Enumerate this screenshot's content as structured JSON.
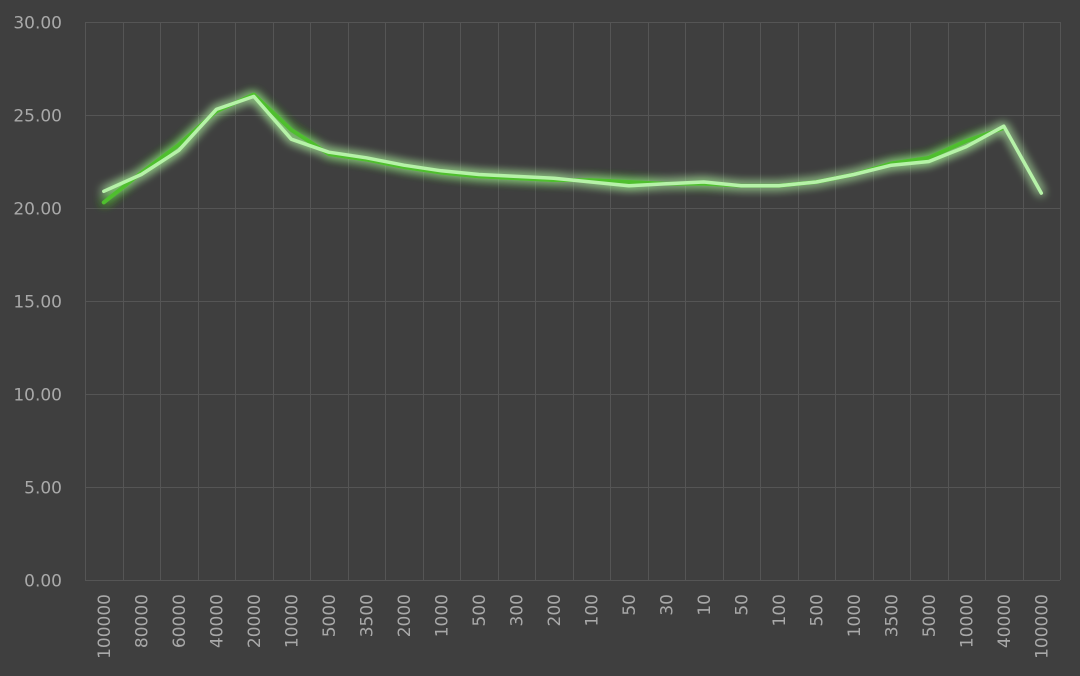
{
  "chart_data": {
    "type": "line",
    "title": "",
    "xlabel": "",
    "ylabel": "",
    "ylim": [
      0,
      30
    ],
    "y_ticks": [
      "0.00",
      "5.00",
      "10.00",
      "15.00",
      "20.00",
      "25.00",
      "30.00"
    ],
    "grid": true,
    "legend": "none",
    "background_color": "#3f3f3f",
    "categories": [
      "100000",
      "80000",
      "60000",
      "40000",
      "20000",
      "10000",
      "5000",
      "3500",
      "2000",
      "1000",
      "500",
      "300",
      "200",
      "100",
      "50",
      "30",
      "10",
      "50",
      "100",
      "500",
      "1000",
      "3500",
      "5000",
      "10000",
      "40000",
      "100000"
    ],
    "series": [
      {
        "color": "#4fbf2f",
        "values": [
          20.3,
          21.9,
          23.4,
          25.2,
          26.1,
          24.2,
          22.9,
          22.6,
          22.2,
          21.9,
          21.7,
          21.6,
          21.5,
          21.5,
          21.4,
          21.3,
          21.3,
          21.2,
          21.2,
          21.4,
          21.8,
          22.4,
          22.7,
          23.6,
          24.3,
          null
        ]
      },
      {
        "color": "#b6f2a8",
        "values": [
          20.9,
          21.8,
          23.1,
          25.3,
          26.0,
          23.7,
          23.0,
          22.7,
          22.3,
          22.0,
          21.8,
          21.7,
          21.6,
          21.4,
          21.2,
          21.3,
          21.4,
          21.2,
          21.2,
          21.4,
          21.8,
          22.3,
          22.5,
          23.3,
          24.4,
          20.8
        ]
      }
    ]
  }
}
